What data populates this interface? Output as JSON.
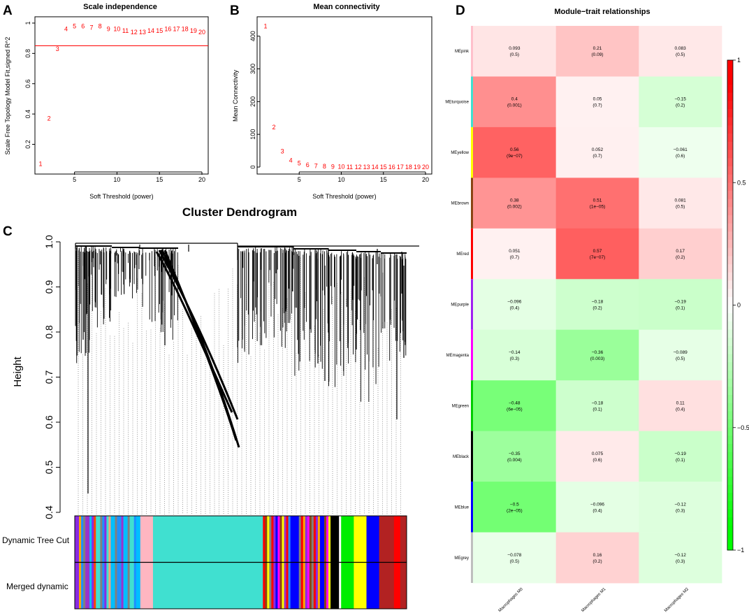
{
  "panel_letters": [
    "A",
    "B",
    "C",
    "D"
  ],
  "colors": {
    "red": "#ff0000",
    "pos": "#ff2020",
    "neg": "#10ee10",
    "axis": "#000000"
  },
  "chart_data": [
    {
      "id": "A",
      "type": "scatter",
      "title": "Scale independence",
      "xlabel": "Soft Threshold (power)",
      "ylabel": "Scale Free Topology Model Fit,signed R^2",
      "xlim": [
        1,
        20
      ],
      "ylim": [
        0.05,
        1.0
      ],
      "xticks": [
        5,
        10,
        15,
        20
      ],
      "yticks": [
        0.2,
        0.4,
        0.6,
        0.8,
        1.0
      ],
      "x": [
        1,
        2,
        3,
        4,
        5,
        6,
        7,
        8,
        9,
        10,
        11,
        12,
        13,
        14,
        15,
        16,
        17,
        18,
        19,
        20
      ],
      "y": [
        0.07,
        0.37,
        0.83,
        0.96,
        0.98,
        0.98,
        0.97,
        0.98,
        0.96,
        0.96,
        0.95,
        0.94,
        0.94,
        0.95,
        0.95,
        0.96,
        0.96,
        0.96,
        0.95,
        0.94
      ],
      "labels": [
        "1",
        "2",
        "3",
        "4",
        "5",
        "6",
        "7",
        "8",
        "9",
        "10",
        "11",
        "12",
        "13",
        "14",
        "15",
        "16",
        "17",
        "18",
        "19",
        "20"
      ],
      "hline": 0.85
    },
    {
      "id": "B",
      "type": "scatter",
      "title": "Mean connectivity",
      "xlabel": "Soft Threshold (power)",
      "ylabel": "Mean Connectivity",
      "xlim": [
        1,
        20
      ],
      "ylim": [
        0,
        440
      ],
      "xticks": [
        5,
        10,
        15,
        20
      ],
      "yticks": [
        0,
        100,
        200,
        300,
        400
      ],
      "x": [
        1,
        2,
        3,
        4,
        5,
        6,
        7,
        8,
        9,
        10,
        11,
        12,
        13,
        14,
        15,
        16,
        17,
        18,
        19,
        20
      ],
      "y": [
        430,
        122,
        48,
        20,
        12,
        6,
        3,
        2,
        1,
        1,
        0.5,
        0.5,
        0.3,
        0.2,
        0.2,
        0.1,
        0.1,
        0.1,
        0.1,
        0.1
      ],
      "labels": [
        "1",
        "2",
        "3",
        "4",
        "5",
        "6",
        "7",
        "8",
        "9",
        "10",
        "11",
        "12",
        "13",
        "14",
        "15",
        "16",
        "17",
        "18",
        "19",
        "20"
      ]
    },
    {
      "id": "C",
      "type": "dendrogram",
      "title": "Cluster Dendrogram",
      "ylabel": "Height",
      "ylim": [
        0.4,
        1.0
      ],
      "yticks": [
        0.4,
        0.5,
        0.6,
        0.7,
        0.8,
        0.9,
        1.0
      ],
      "row_labels": [
        "Dynamic Tree Cut",
        "Merged dynamic"
      ],
      "color_blocks": [
        {
          "color": "#8a2be2",
          "weight": 2
        },
        {
          "color": "#ffa500",
          "weight": 1
        },
        {
          "color": "#1e90ff",
          "weight": 1
        },
        {
          "color": "#808080",
          "weight": 1
        },
        {
          "color": "#9932cc",
          "weight": 2
        },
        {
          "color": "#00bfff",
          "weight": 1
        },
        {
          "color": "#8a2be2",
          "weight": 1
        },
        {
          "color": "#ff4500",
          "weight": 1
        },
        {
          "color": "#40e0d0",
          "weight": 2
        },
        {
          "color": "#808080",
          "weight": 1
        },
        {
          "color": "#1e90ff",
          "weight": 1
        },
        {
          "color": "#8a2be2",
          "weight": 1
        },
        {
          "color": "#40e0d0",
          "weight": 1
        },
        {
          "color": "#ffa07a",
          "weight": 1
        },
        {
          "color": "#00bfff",
          "weight": 2
        },
        {
          "color": "#808080",
          "weight": 1
        },
        {
          "color": "#1e90ff",
          "weight": 2
        },
        {
          "color": "#9932cc",
          "weight": 1
        },
        {
          "color": "#00bfff",
          "weight": 2
        },
        {
          "color": "#808080",
          "weight": 1
        },
        {
          "color": "#40e0d0",
          "weight": 2
        },
        {
          "color": "#1e90ff",
          "weight": 1
        },
        {
          "color": "#00bfff",
          "weight": 2
        },
        {
          "color": "#ffb6c1",
          "weight": 6
        },
        {
          "color": "#40e0d0",
          "weight": 52
        },
        {
          "color": "#ff0000",
          "weight": 1
        },
        {
          "color": "#8b4513",
          "weight": 1
        },
        {
          "color": "#ffff00",
          "weight": 1
        },
        {
          "color": "#808080",
          "weight": 1
        },
        {
          "color": "#ff0000",
          "weight": 1
        },
        {
          "color": "#8a2be2",
          "weight": 1
        },
        {
          "color": "#0000ff",
          "weight": 1
        },
        {
          "color": "#ff00ff",
          "weight": 1
        },
        {
          "color": "#8b4513",
          "weight": 1
        },
        {
          "color": "#ffff00",
          "weight": 1
        },
        {
          "color": "#9932cc",
          "weight": 1
        },
        {
          "color": "#ff0000",
          "weight": 1
        },
        {
          "color": "#1e90ff",
          "weight": 1
        },
        {
          "color": "#0000ff",
          "weight": 4
        },
        {
          "color": "#808080",
          "weight": 1
        },
        {
          "color": "#ff0000",
          "weight": 1
        },
        {
          "color": "#ffa500",
          "weight": 1
        },
        {
          "color": "#8a2be2",
          "weight": 1
        },
        {
          "color": "#ff00ff",
          "weight": 1
        },
        {
          "color": "#8b4513",
          "weight": 1
        },
        {
          "color": "#808080",
          "weight": 1
        },
        {
          "color": "#ff0000",
          "weight": 1
        },
        {
          "color": "#8a2be2",
          "weight": 1
        },
        {
          "color": "#ffa500",
          "weight": 1
        },
        {
          "color": "#0000ff",
          "weight": 2
        },
        {
          "color": "#8b4513",
          "weight": 1
        },
        {
          "color": "#ff00ff",
          "weight": 1
        },
        {
          "color": "#ffff00",
          "weight": 1
        },
        {
          "color": "#000000",
          "weight": 4
        },
        {
          "color": "#ffffff",
          "weight": 1
        },
        {
          "color": "#00ee00",
          "weight": 6
        },
        {
          "color": "#ffff00",
          "weight": 6
        },
        {
          "color": "#0000ff",
          "weight": 6
        },
        {
          "color": "#b22222",
          "weight": 7
        },
        {
          "color": "#ff0000",
          "weight": 3
        },
        {
          "color": "#b22222",
          "weight": 3
        }
      ]
    },
    {
      "id": "D",
      "type": "heatmap",
      "title": "Module−trait relationships",
      "rows": [
        "MEpink",
        "MEturquoise",
        "MEyellow",
        "MEbrown",
        "MEred",
        "MEpurple",
        "MEmagenta",
        "MEgreen",
        "MEblack",
        "MEblue",
        "MEgrey"
      ],
      "row_colors": [
        "#ffc0cb",
        "#40e0d0",
        "#ffff00",
        "#8b4513",
        "#ff0000",
        "#a020f0",
        "#ff00ff",
        "#00cd00",
        "#000000",
        "#0000ff",
        "#bebebe"
      ],
      "columns": [
        "Macrophages M0",
        "Macrophages M1",
        "Macrophages M2"
      ],
      "values": [
        [
          0.093,
          0.21,
          0.083
        ],
        [
          0.4,
          0.05,
          -0.15
        ],
        [
          0.56,
          0.052,
          -0.061
        ],
        [
          0.38,
          0.51,
          0.081
        ],
        [
          0.051,
          0.57,
          0.17
        ],
        [
          -0.096,
          -0.18,
          -0.19
        ],
        [
          -0.14,
          -0.36,
          -0.089
        ],
        [
          -0.48,
          -0.18,
          0.11
        ],
        [
          -0.35,
          0.075,
          -0.19
        ],
        [
          -0.5,
          -0.096,
          -0.12
        ],
        [
          -0.078,
          0.16,
          -0.12
        ]
      ],
      "cell_text": [
        [
          "0.093",
          "0.21",
          "0.083"
        ],
        [
          "0.4",
          "0.05",
          "−0.15"
        ],
        [
          "0.56",
          "0.052",
          "−0.061"
        ],
        [
          "0.38",
          "0.51",
          "0.081"
        ],
        [
          "0.051",
          "0.57",
          "0.17"
        ],
        [
          "−0.096",
          "−0.18",
          "−0.19"
        ],
        [
          "−0.14",
          "−0.36",
          "−0.089"
        ],
        [
          "−0.48",
          "−0.18",
          "0.11"
        ],
        [
          "−0.35",
          "0.075",
          "−0.19"
        ],
        [
          "−0.5",
          "−0.096",
          "−0.12"
        ],
        [
          "−0.078",
          "0.16",
          "−0.12"
        ]
      ],
      "pvalues": [
        [
          "(0.5)",
          "(0.09)",
          "(0.5)"
        ],
        [
          "(0.001)",
          "(0.7)",
          "(0.2)"
        ],
        [
          "(9e−07)",
          "(0.7)",
          "(0.6)"
        ],
        [
          "(0.002)",
          "(1e−05)",
          "(0.5)"
        ],
        [
          "(0.7)",
          "(7e−07)",
          "(0.2)"
        ],
        [
          "(0.4)",
          "(0.2)",
          "(0.1)"
        ],
        [
          "(0.3)",
          "(0.003)",
          "(0.5)"
        ],
        [
          "(6e−05)",
          "(0.1)",
          "(0.4)"
        ],
        [
          "(0.004)",
          "(0.6)",
          "(0.1)"
        ],
        [
          "(2e−05)",
          "(0.4)",
          "(0.3)"
        ],
        [
          "(0.5)",
          "(0.2)",
          "(0.3)"
        ]
      ],
      "colorbar_range": [
        -1,
        1
      ],
      "colorbar_ticks": [
        -1,
        -0.5,
        0,
        0.5,
        1
      ],
      "colorbar_labels": [
        "−1",
        "−0.5",
        "0",
        "0.5",
        "1"
      ]
    }
  ]
}
